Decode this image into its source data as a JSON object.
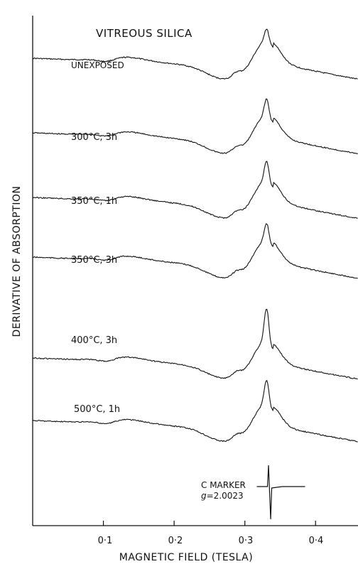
{
  "chart_data": {
    "type": "line",
    "title": "VITREOUS SILICA",
    "xlabel": "MAGNETIC FIELD (TESLA)",
    "ylabel": "DERIVATIVE OF ABSORPTION",
    "xlim": [
      0.0,
      0.46
    ],
    "x_ticks": [
      "0·1",
      "0·2",
      "0·3",
      "0·4"
    ],
    "x_tick_values": [
      0.1,
      0.2,
      0.3,
      0.4
    ],
    "grid": false,
    "series": [
      {
        "name": "UNEXPOSED"
      },
      {
        "name": "300°C, 3h"
      },
      {
        "name": "350°C, 1h"
      },
      {
        "name": "350°C, 3h"
      },
      {
        "name": "400°C, 3h"
      },
      {
        "name": "500°C, 1h"
      }
    ],
    "marker": {
      "line1": "C MARKER",
      "g_symbol": "g",
      "g_value": "=2.0023",
      "x": 0.335
    }
  }
}
